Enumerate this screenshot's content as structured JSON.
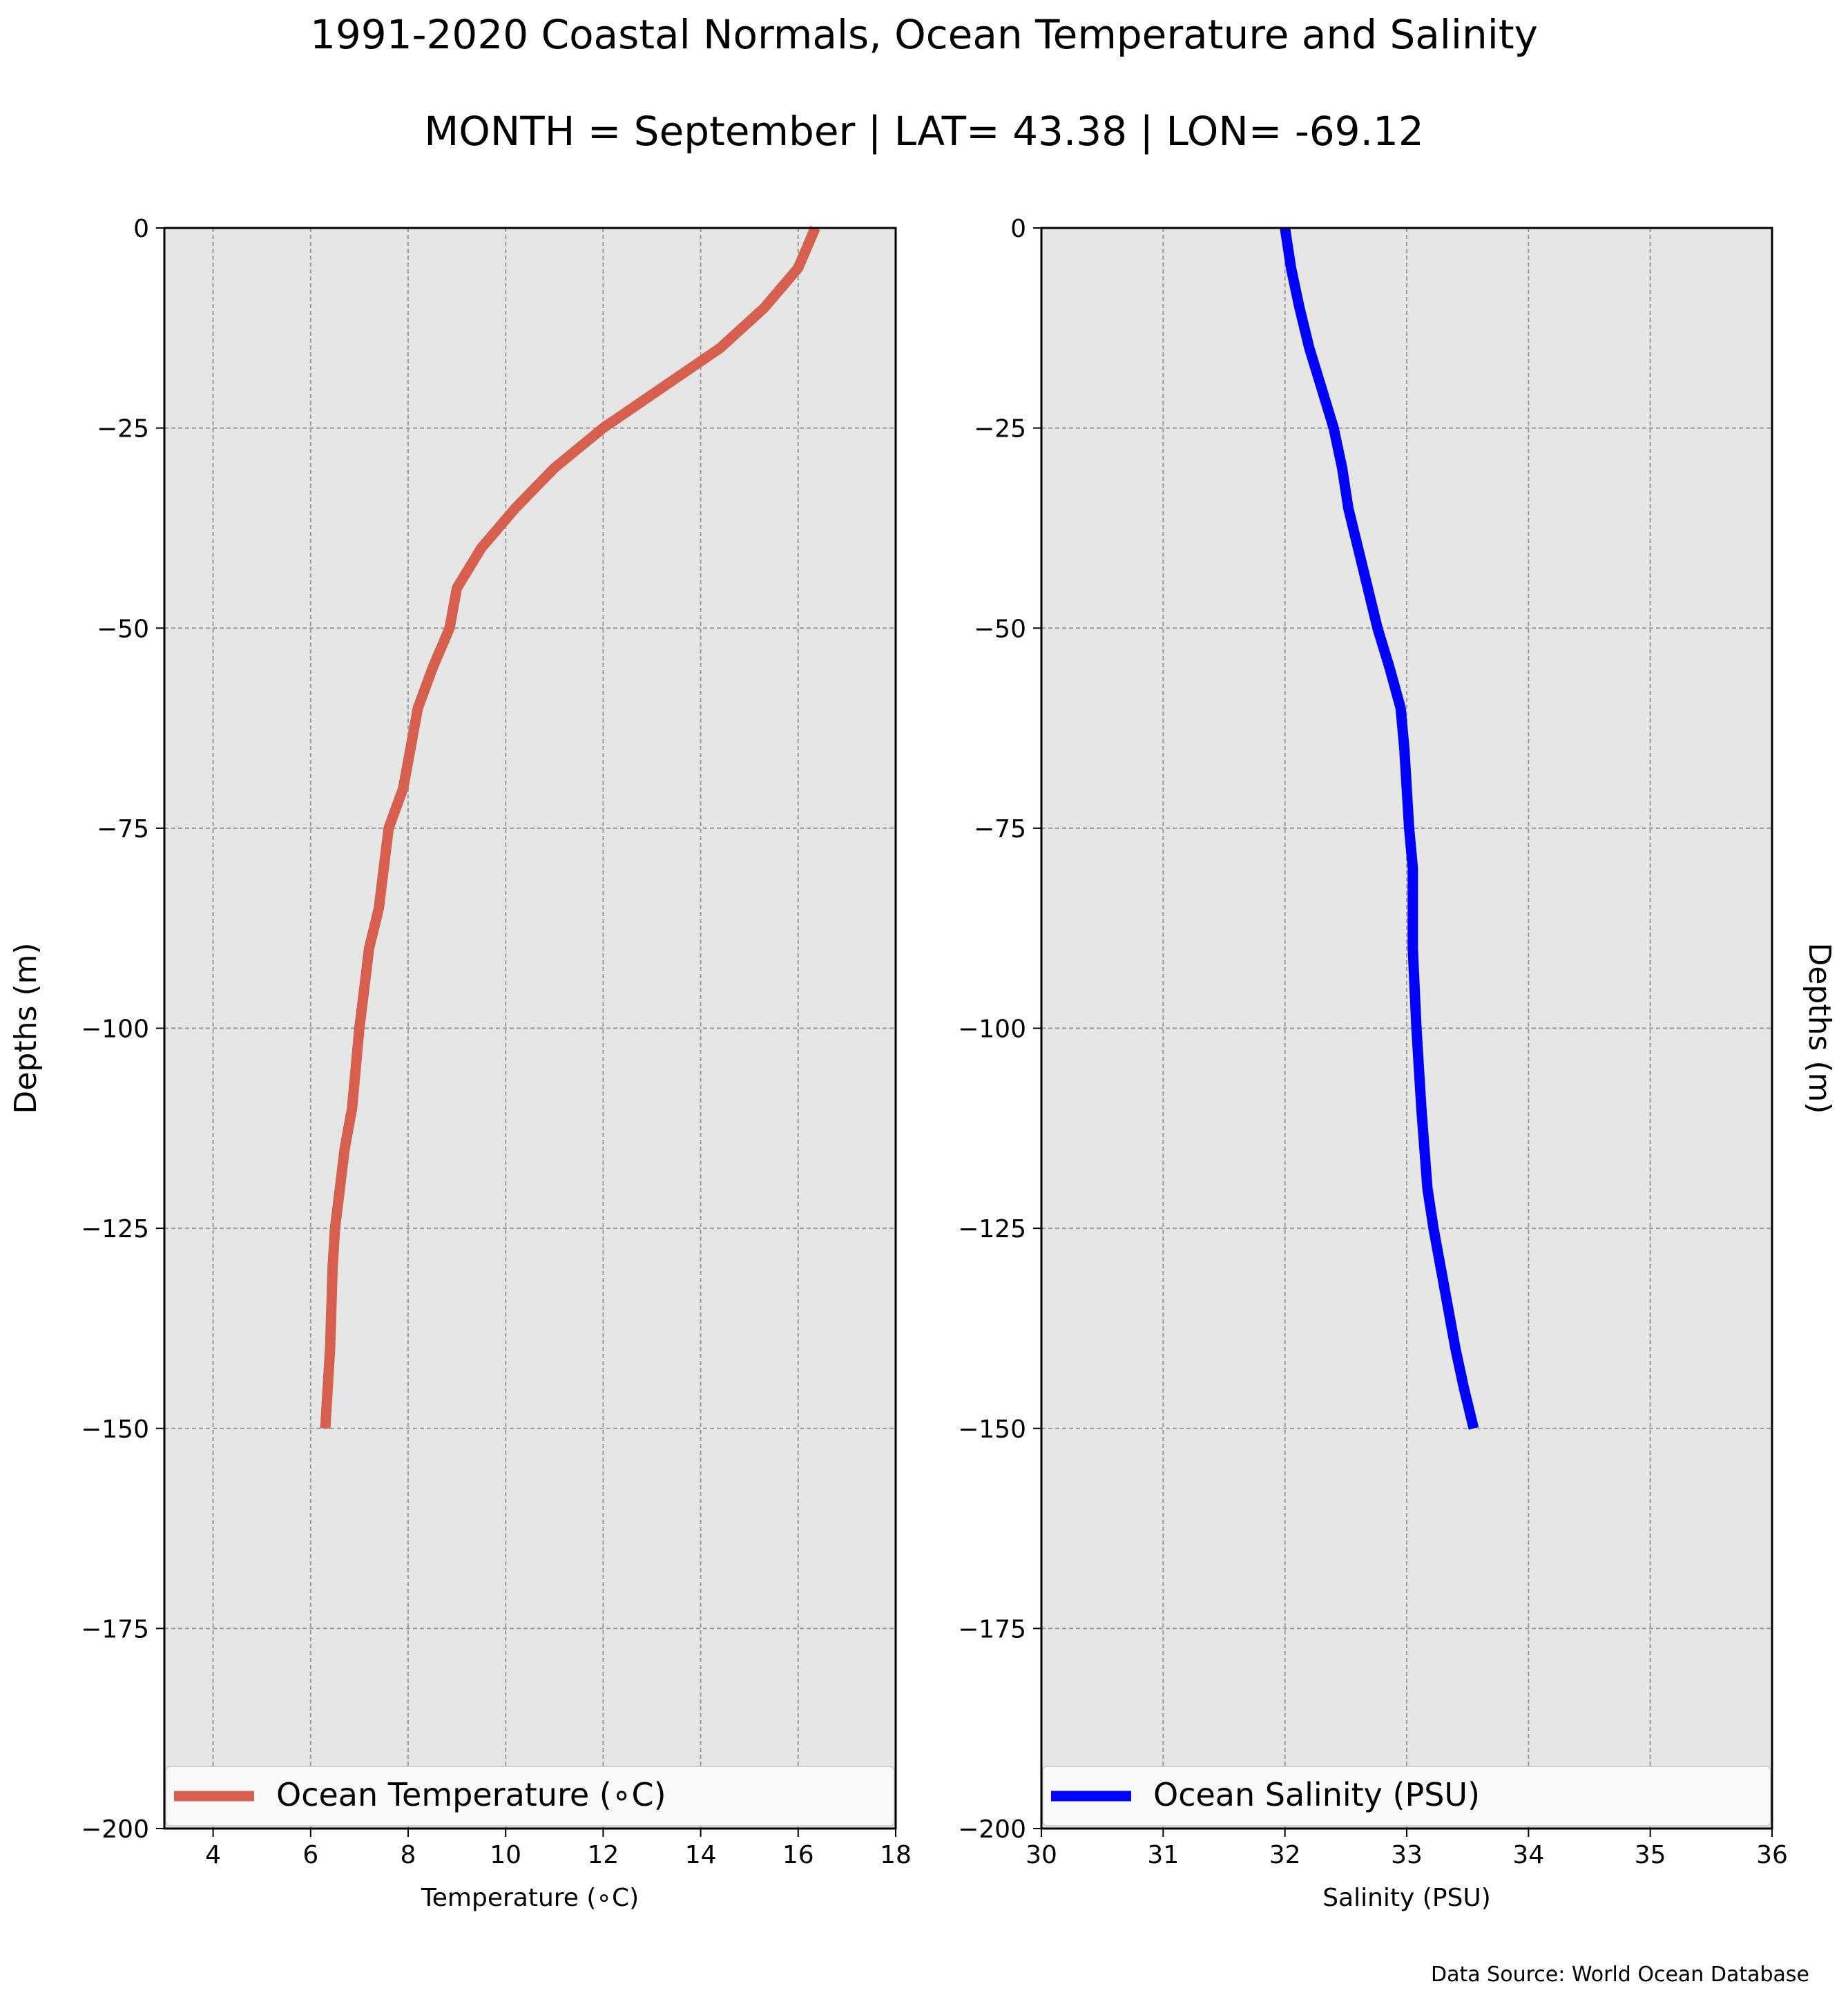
{
  "title": "1991-2020 Coastal Normals, Ocean Temperature and Salinity",
  "subtitle": "MONTH = September | LAT= 43.38 | LON= -69.12",
  "footer": "Data Source: World Ocean Database",
  "chart_data": [
    {
      "type": "line",
      "xlabel": "Temperature (∘C)",
      "ylabel": "Depths (m)",
      "xlim": [
        3,
        18
      ],
      "ylim": [
        -200,
        0
      ],
      "xticks": [
        4,
        6,
        8,
        10,
        12,
        14,
        16,
        18
      ],
      "yticks": [
        0,
        -25,
        -50,
        -75,
        -100,
        -125,
        -150,
        -175,
        -200
      ],
      "ytick_labels": [
        "0",
        "−25",
        "−50",
        "−75",
        "−100",
        "−125",
        "−150",
        "−175",
        "−200"
      ],
      "grid": true,
      "legend_position": "bottom",
      "series": [
        {
          "name": "Ocean Temperature (∘C)",
          "color": "#d6604d",
          "x": [
            16.35,
            16.0,
            15.3,
            14.4,
            13.2,
            12.0,
            11.0,
            10.2,
            9.5,
            9.0,
            8.85,
            8.5,
            8.2,
            7.9,
            7.6,
            7.4,
            7.2,
            7.1,
            7.0,
            6.85,
            6.7,
            6.6,
            6.5,
            6.45,
            6.4,
            6.35,
            6.3
          ],
          "y": [
            0,
            -5,
            -10,
            -15,
            -20,
            -25,
            -30,
            -35,
            -40,
            -45,
            -50,
            -55,
            -60,
            -70,
            -75,
            -85,
            -90,
            -95,
            -100,
            -110,
            -115,
            -120,
            -125,
            -130,
            -140,
            -145,
            -150
          ]
        }
      ]
    },
    {
      "type": "line",
      "xlabel": "Salinity (PSU)",
      "ylabel": "Depths (m)",
      "xlim": [
        30,
        36
      ],
      "ylim": [
        -200,
        0
      ],
      "xticks": [
        30,
        31,
        32,
        33,
        34,
        35,
        36
      ],
      "yticks": [
        0,
        -25,
        -50,
        -75,
        -100,
        -125,
        -150,
        -175,
        -200
      ],
      "ytick_labels": [
        "0",
        "−25",
        "−50",
        "−75",
        "−100",
        "−125",
        "−150",
        "−175",
        "−200"
      ],
      "grid": true,
      "legend_position": "bottom",
      "series": [
        {
          "name": "Ocean Salinity (PSU)",
          "color": "#0000ff",
          "x": [
            32.0,
            32.05,
            32.12,
            32.2,
            32.3,
            32.4,
            32.47,
            32.52,
            32.6,
            32.68,
            32.76,
            32.86,
            32.95,
            32.98,
            33.0,
            33.02,
            33.05,
            33.05,
            33.08,
            33.12,
            33.17,
            33.22,
            33.28,
            33.34,
            33.4,
            33.47,
            33.55
          ],
          "y": [
            0,
            -5,
            -10,
            -15,
            -20,
            -25,
            -30,
            -35,
            -40,
            -45,
            -50,
            -55,
            -60,
            -65,
            -70,
            -75,
            -80,
            -90,
            -100,
            -110,
            -120,
            -125,
            -130,
            -135,
            -140,
            -145,
            -150
          ]
        }
      ]
    }
  ]
}
